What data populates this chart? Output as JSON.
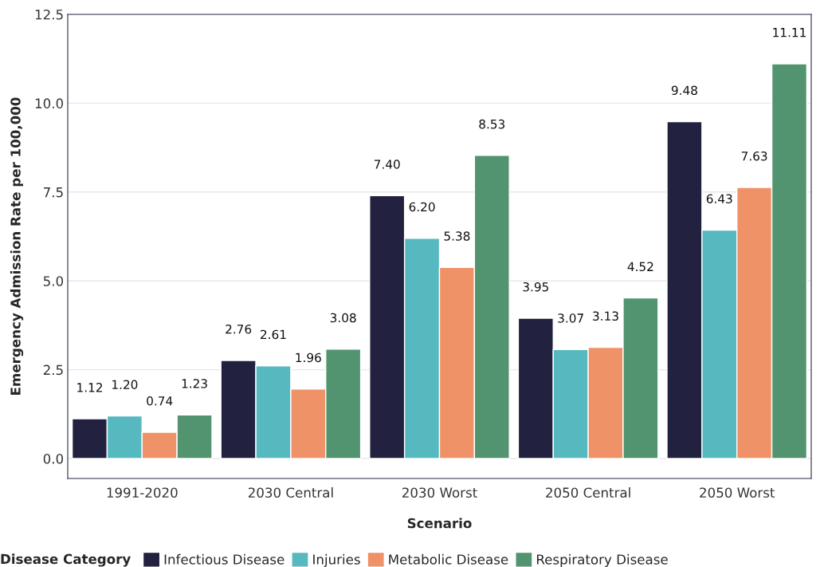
{
  "chart_data": {
    "type": "bar",
    "xlabel": "Scenario",
    "ylabel": "Emergency Admission Rate per 100,000",
    "legend_title": "Disease Category",
    "categories": [
      "1991-2020",
      "2030 Central",
      "2030 Worst",
      "2050 Central",
      "2050 Worst"
    ],
    "series": [
      {
        "name": "Infectious Disease",
        "color": "#22213f",
        "values": [
          1.12,
          2.76,
          7.4,
          3.95,
          9.48
        ],
        "value_labels": [
          "1.12",
          "2.76",
          "7.40",
          "3.95",
          "9.48"
        ]
      },
      {
        "name": "Injuries",
        "color": "#56b9bf",
        "values": [
          1.2,
          2.61,
          6.2,
          3.07,
          6.43
        ],
        "value_labels": [
          "1.20",
          "2.61",
          "6.20",
          "3.07",
          "6.43"
        ]
      },
      {
        "name": "Metabolic Disease",
        "color": "#f09268",
        "values": [
          0.74,
          1.96,
          5.38,
          3.13,
          7.63
        ],
        "value_labels": [
          "0.74",
          "1.96",
          "5.38",
          "3.13",
          "7.63"
        ]
      },
      {
        "name": "Respiratory Disease",
        "color": "#529470",
        "values": [
          1.23,
          3.08,
          8.53,
          4.52,
          11.11
        ],
        "value_labels": [
          "1.23",
          "3.08",
          "8.53",
          "4.52",
          "11.11"
        ]
      }
    ],
    "ylim": [
      -0.56,
      12.5
    ],
    "yticks": [
      {
        "value": 0,
        "label": "0.0"
      },
      {
        "value": 2.5,
        "label": "2.5"
      },
      {
        "value": 5,
        "label": "5.0"
      },
      {
        "value": 7.5,
        "label": "7.5"
      },
      {
        "value": 10,
        "label": "10.0"
      },
      {
        "value": 12.5,
        "label": "12.5"
      }
    ],
    "grid": "y",
    "legend": "bottom"
  }
}
